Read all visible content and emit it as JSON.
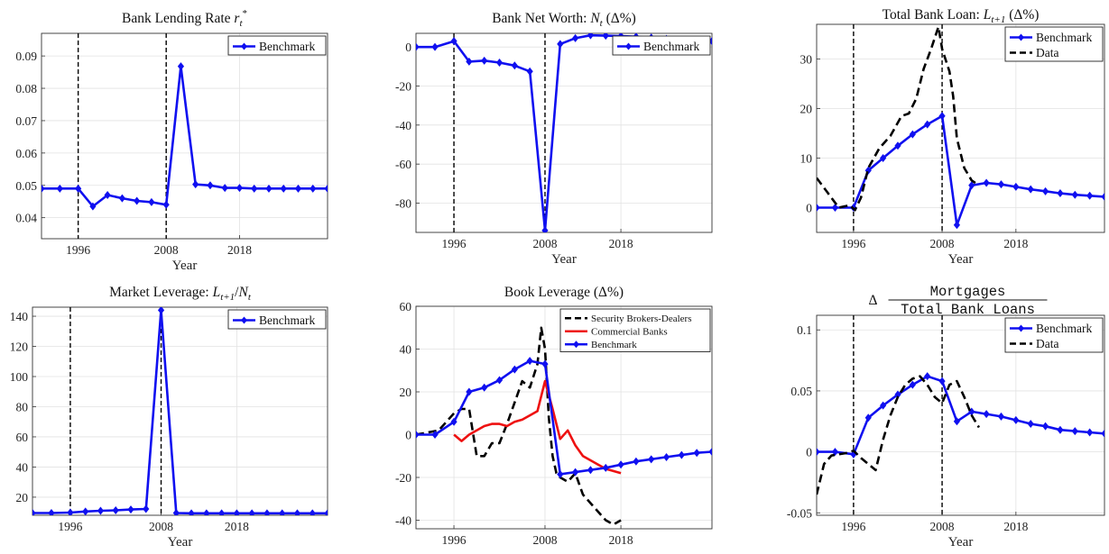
{
  "chart_data": [
    {
      "type": "line",
      "title": "Bank Lending Rate $r_t^*$",
      "xlabel": "Year",
      "ylabel": "",
      "xlim": [
        1991,
        2030
      ],
      "ylim": [
        0.0335,
        0.097
      ],
      "xticks": [
        1996,
        2008,
        2018
      ],
      "yticks": [
        0.04,
        0.05,
        0.06,
        0.07,
        0.08,
        0.09
      ],
      "ytick_labels": [
        "0.04",
        "0.05",
        "0.06",
        "0.07",
        "0.08",
        "0.09"
      ],
      "vlines": [
        1996,
        2008
      ],
      "legend": "top-right",
      "series": [
        {
          "name": "Benchmark",
          "color": "#1010f0",
          "marker": true,
          "dash": false,
          "x": [
            1991,
            1993.5,
            1996,
            1998,
            2000,
            2002,
            2004,
            2006,
            2008,
            2010,
            2012,
            2014,
            2016,
            2018,
            2020,
            2022,
            2024,
            2026,
            2028,
            2030
          ],
          "y": [
            0.049,
            0.049,
            0.049,
            0.0435,
            0.047,
            0.046,
            0.0452,
            0.0448,
            0.044,
            0.0868,
            0.0503,
            0.05,
            0.0492,
            0.0492,
            0.049,
            0.049,
            0.049,
            0.049,
            0.049,
            0.049
          ]
        }
      ]
    },
    {
      "type": "line",
      "title": "Bank Net Worth: $N_t$ ($\\Delta\\%$)",
      "xlabel": "Year",
      "ylabel": "",
      "xlim": [
        1991,
        2030
      ],
      "ylim": [
        -95,
        7
      ],
      "xticks": [
        1996,
        2008,
        2018
      ],
      "yticks": [
        0,
        -20,
        -40,
        -60,
        -80
      ],
      "ytick_labels": [
        "0",
        "-20",
        "-40",
        "-60",
        "-80"
      ],
      "vlines": [
        1996,
        2008
      ],
      "legend": "top-right",
      "series": [
        {
          "name": "Benchmark",
          "color": "#1010f0",
          "marker": true,
          "dash": false,
          "x": [
            1991,
            1993.5,
            1996,
            1998,
            2000,
            2002,
            2004,
            2006,
            2008,
            2010,
            2012,
            2014,
            2016,
            2018,
            2020,
            2022,
            2024,
            2026,
            2028,
            2030
          ],
          "y": [
            0,
            0,
            3,
            -7.5,
            -7,
            -8,
            -9.5,
            -12.5,
            -94,
            1.5,
            4.5,
            6,
            5.8,
            5.6,
            5.3,
            4.8,
            4.2,
            3.7,
            3.3,
            3
          ]
        }
      ]
    },
    {
      "type": "line",
      "title": "Total Bank Loan: $L_{t+1}$ ($\\Delta\\%$)",
      "xlabel": "Year",
      "ylabel": "",
      "xlim": [
        1991,
        2030
      ],
      "ylim": [
        -5,
        37
      ],
      "xticks": [
        1996,
        2008,
        2018
      ],
      "yticks": [
        0,
        10,
        20,
        30
      ],
      "ytick_labels": [
        "0",
        "10",
        "20",
        "30"
      ],
      "vlines": [
        1996,
        2008
      ],
      "legend": "top-right",
      "series": [
        {
          "name": "Benchmark",
          "color": "#1010f0",
          "marker": true,
          "dash": false,
          "x": [
            1991,
            1993.5,
            1996,
            1998,
            2000,
            2002,
            2004,
            2006,
            2008,
            2010,
            2012,
            2014,
            2016,
            2018,
            2020,
            2022,
            2024,
            2026,
            2028,
            2030
          ],
          "y": [
            0,
            0,
            0,
            7.5,
            10,
            12.5,
            14.8,
            16.8,
            18.5,
            -3.5,
            4.5,
            5,
            4.7,
            4.2,
            3.7,
            3.3,
            2.9,
            2.6,
            2.4,
            2.2
          ]
        },
        {
          "name": "Data",
          "color": "#000000",
          "marker": false,
          "dash": true,
          "x": [
            1991,
            1992.5,
            1994,
            1995.5,
            1996.2,
            1997,
            1998,
            1999.5,
            2001,
            2002.5,
            2003.5,
            2004.5,
            2005.5,
            2006.5,
            2007.5,
            2008,
            2009,
            2009.5,
            2010,
            2011,
            2012,
            2013
          ],
          "y": [
            6,
            3,
            0,
            0.5,
            -0.5,
            2,
            8,
            12,
            14.5,
            18.5,
            19,
            22,
            28,
            32,
            36.5,
            32,
            27.5,
            22.5,
            14,
            8,
            5.5,
            4.5
          ]
        }
      ]
    },
    {
      "type": "line",
      "title": "Market Leverage: $L_{t+1}/N_t$",
      "xlabel": "Year",
      "ylabel": "",
      "xlim": [
        1991,
        2030
      ],
      "ylim": [
        8,
        146
      ],
      "xticks": [
        1996,
        2008,
        2018
      ],
      "yticks": [
        20,
        40,
        60,
        80,
        100,
        120,
        140
      ],
      "ytick_labels": [
        "20",
        "40",
        "60",
        "80",
        "100",
        "120",
        "140"
      ],
      "vlines": [
        1996,
        2008
      ],
      "legend": "top-right",
      "series": [
        {
          "name": "Benchmark",
          "color": "#1010f0",
          "marker": true,
          "dash": false,
          "x": [
            1991,
            1993.5,
            1996,
            1998,
            2000,
            2002,
            2004,
            2006,
            2008,
            2010,
            2012,
            2014,
            2016,
            2018,
            2020,
            2022,
            2024,
            2026,
            2028,
            2030
          ],
          "y": [
            9.5,
            9.5,
            9.8,
            10.5,
            11,
            11.3,
            11.8,
            12.2,
            144,
            9.5,
            9.3,
            9.3,
            9.3,
            9.3,
            9.3,
            9.3,
            9.3,
            9.3,
            9.3,
            9.3
          ]
        }
      ]
    },
    {
      "type": "line",
      "title": "Book Leverage ($\\Delta\\%$)",
      "xlabel": "",
      "ylabel": "",
      "xlim": [
        1991,
        2030
      ],
      "ylim": [
        -44,
        60
      ],
      "xticks": [
        1996,
        2008,
        2018
      ],
      "yticks": [
        60,
        40,
        20,
        0,
        -20,
        -40
      ],
      "ytick_labels": [
        "60",
        "40",
        "20",
        "0",
        "-20",
        "-40"
      ],
      "vlines": [],
      "legend": "top-right",
      "series": [
        {
          "name": "Security Brokers-Dealers",
          "color": "#000000",
          "marker": false,
          "dash": true,
          "x": [
            1991,
            1994,
            1996,
            1997,
            1998,
            1999,
            2000,
            2001,
            2002,
            2003,
            2004,
            2005,
            2006,
            2007,
            2007.5,
            2008,
            2008.5,
            2009,
            2009.5,
            2010,
            2011,
            2012,
            2013,
            2014,
            2015,
            2016,
            2017,
            2018
          ],
          "y": [
            0,
            2,
            10,
            12,
            12,
            -10,
            -10,
            -4,
            -4,
            5,
            15,
            25,
            22,
            33,
            50,
            40,
            8,
            -10,
            -18,
            -20,
            -22,
            -18,
            -28,
            -32,
            -36,
            -40,
            -42,
            -40
          ]
        },
        {
          "name": "Commercial Banks",
          "color": "#ee1111",
          "marker": false,
          "dash": false,
          "x": [
            1996,
            1997,
            1998,
            1999,
            2000,
            2001,
            2002,
            2003,
            2004,
            2005,
            2006,
            2007,
            2008,
            2009,
            2010,
            2011,
            2012,
            2013,
            2014,
            2015,
            2016,
            2017,
            2018
          ],
          "y": [
            0,
            -3,
            0,
            2,
            4,
            5,
            5,
            4,
            6,
            7,
            9,
            11,
            25,
            12,
            -2,
            2,
            -5,
            -10,
            -12,
            -14,
            -16,
            -17,
            -18
          ]
        },
        {
          "name": "Benchmark",
          "color": "#1010f0",
          "marker": true,
          "dash": false,
          "x": [
            1991,
            1993.5,
            1996,
            1998,
            2000,
            2002,
            2004,
            2006,
            2008,
            2010,
            2012,
            2014,
            2016,
            2018,
            2020,
            2022,
            2024,
            2026,
            2028,
            2030
          ],
          "y": [
            0,
            0,
            6,
            20,
            22,
            25.5,
            30.5,
            34.5,
            33,
            -18.5,
            -17.5,
            -16.5,
            -15.5,
            -14,
            -12.5,
            -11.5,
            -10.5,
            -9.5,
            -8.5,
            -8
          ]
        }
      ]
    },
    {
      "type": "line",
      "title": "$\\Delta\\,\\frac{\\texttt{Mortgages}}{\\texttt{Total Bank Loans}}$",
      "xlabel": "Year",
      "ylabel": "",
      "xlim": [
        1991,
        2030
      ],
      "ylim": [
        -0.052,
        0.112
      ],
      "xticks": [
        1996,
        2008,
        2018
      ],
      "yticks": [
        -0.05,
        0,
        0.05,
        0.1
      ],
      "ytick_labels": [
        "-0.05",
        "0",
        "0.05",
        "0.1"
      ],
      "vlines": [
        1996,
        2008
      ],
      "legend": "top-right",
      "series": [
        {
          "name": "Benchmark",
          "color": "#1010f0",
          "marker": true,
          "dash": false,
          "x": [
            1991,
            1993.5,
            1996,
            1998,
            2000,
            2002,
            2004,
            2006,
            2008,
            2010,
            2012,
            2014,
            2016,
            2018,
            2020,
            2022,
            2024,
            2026,
            2028,
            2030
          ],
          "y": [
            0,
            0,
            -0.002,
            0.028,
            0.038,
            0.047,
            0.055,
            0.062,
            0.058,
            0.025,
            0.033,
            0.031,
            0.029,
            0.026,
            0.023,
            0.021,
            0.018,
            0.017,
            0.016,
            0.015
          ]
        },
        {
          "name": "Data",
          "color": "#000000",
          "marker": false,
          "dash": true,
          "x": [
            1991,
            1992,
            1993,
            1994,
            1995,
            1996,
            1997,
            1998,
            1999,
            2000,
            2001,
            2002,
            2003,
            2004,
            2005,
            2006,
            2007,
            2008,
            2009,
            2010,
            2011,
            2012,
            2013
          ],
          "y": [
            -0.035,
            -0.01,
            -0.003,
            -0.002,
            -0.001,
            0.001,
            -0.005,
            -0.01,
            -0.015,
            0.01,
            0.03,
            0.045,
            0.055,
            0.06,
            0.062,
            0.055,
            0.045,
            0.04,
            0.055,
            0.058,
            0.045,
            0.03,
            0.02
          ]
        }
      ]
    }
  ]
}
